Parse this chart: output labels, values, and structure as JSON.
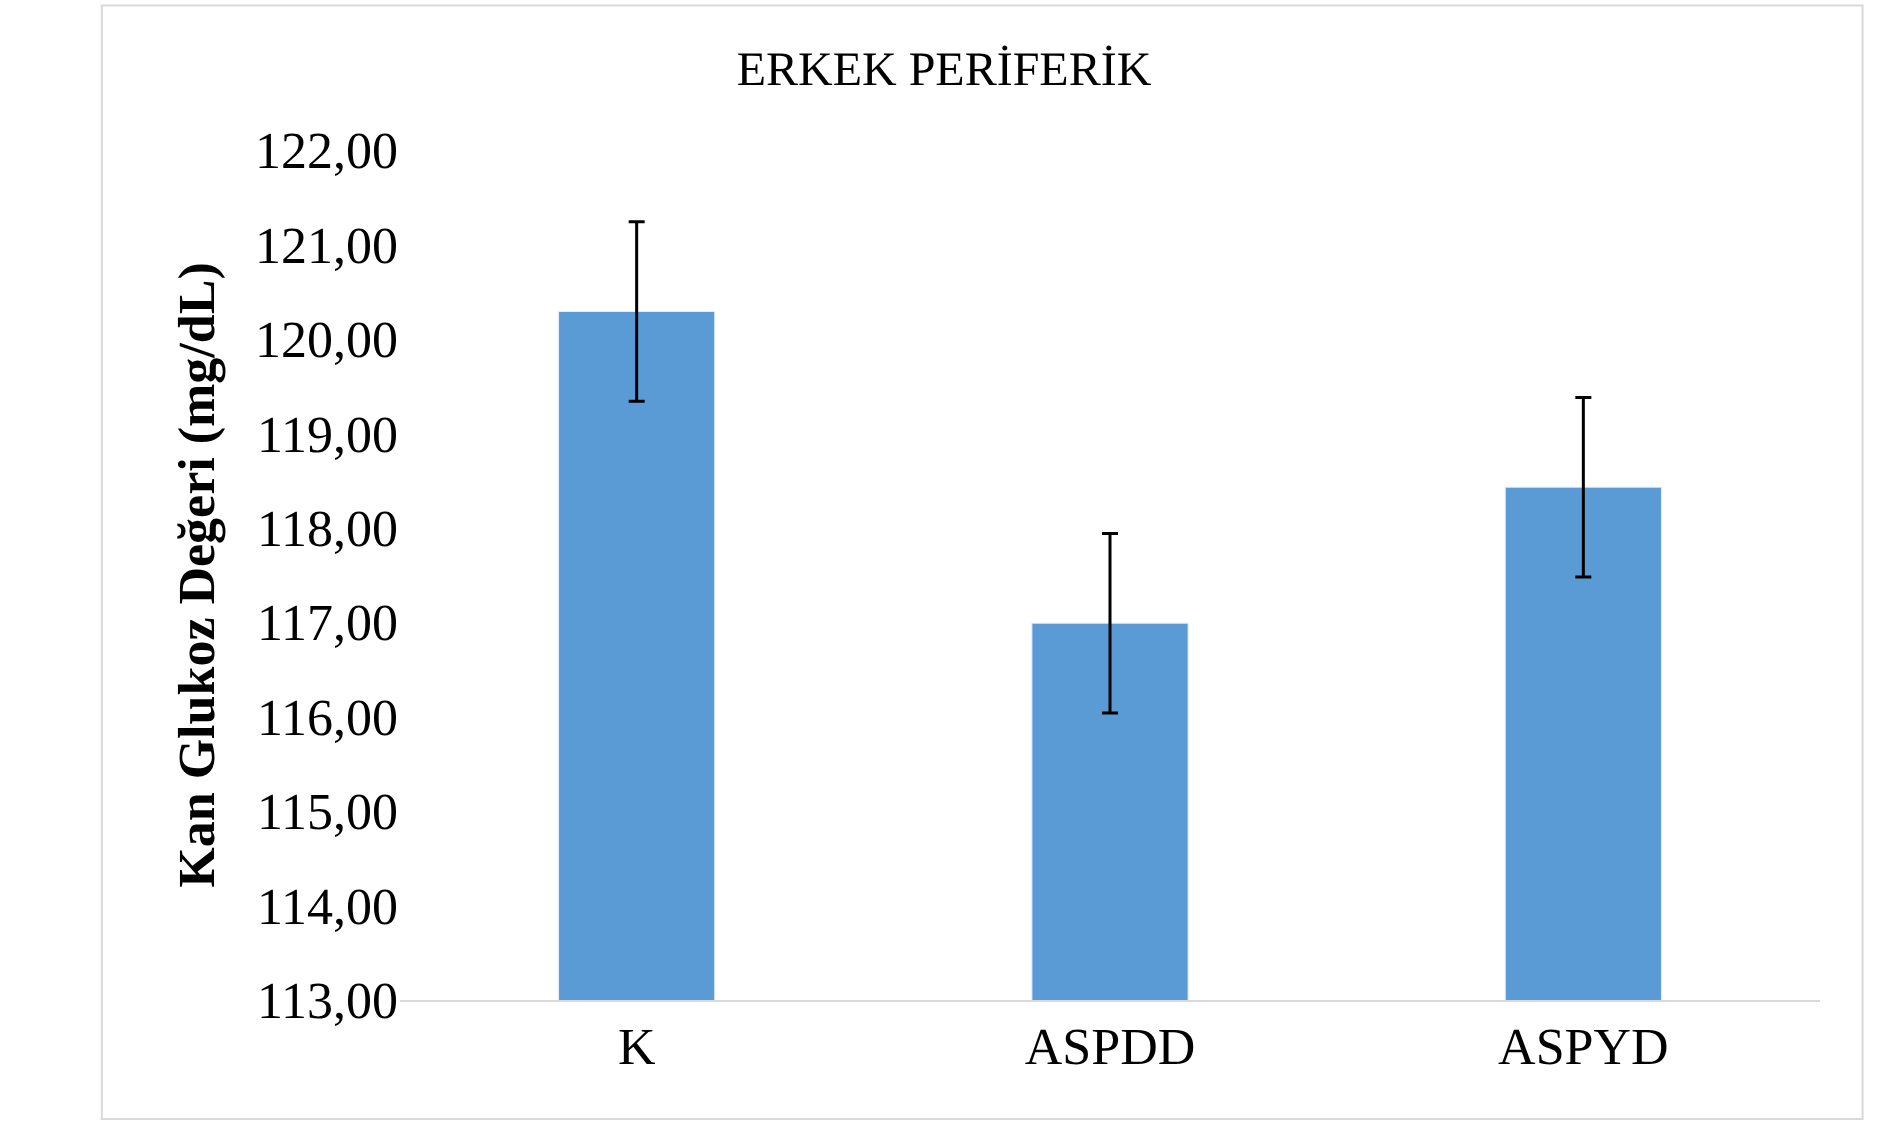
{
  "chart_data": {
    "type": "bar",
    "title": "ERKEK PERİFERİK",
    "ylabel": "Kan Glukoz Değeri (mg/dL)",
    "categories": [
      "K",
      "ASPDD",
      "ASPYD"
    ],
    "values": [
      120.29,
      116.99,
      118.43
    ],
    "errors": [
      0.95,
      0.95,
      0.95
    ],
    "color": "#5b9bd5",
    "ylim": [
      113,
      122
    ],
    "yticks": [
      {
        "value": 113,
        "label": "113,00"
      },
      {
        "value": 114,
        "label": "114,00"
      },
      {
        "value": 115,
        "label": "115,00"
      },
      {
        "value": 116,
        "label": "116,00"
      },
      {
        "value": 117,
        "label": "117,00"
      },
      {
        "value": 118,
        "label": "118,00"
      },
      {
        "value": 119,
        "label": "119,00"
      },
      {
        "value": 120,
        "label": "120,00"
      },
      {
        "value": 121,
        "label": "121,00"
      },
      {
        "value": 122,
        "label": "122,00"
      }
    ],
    "grid": false,
    "legend": false
  }
}
